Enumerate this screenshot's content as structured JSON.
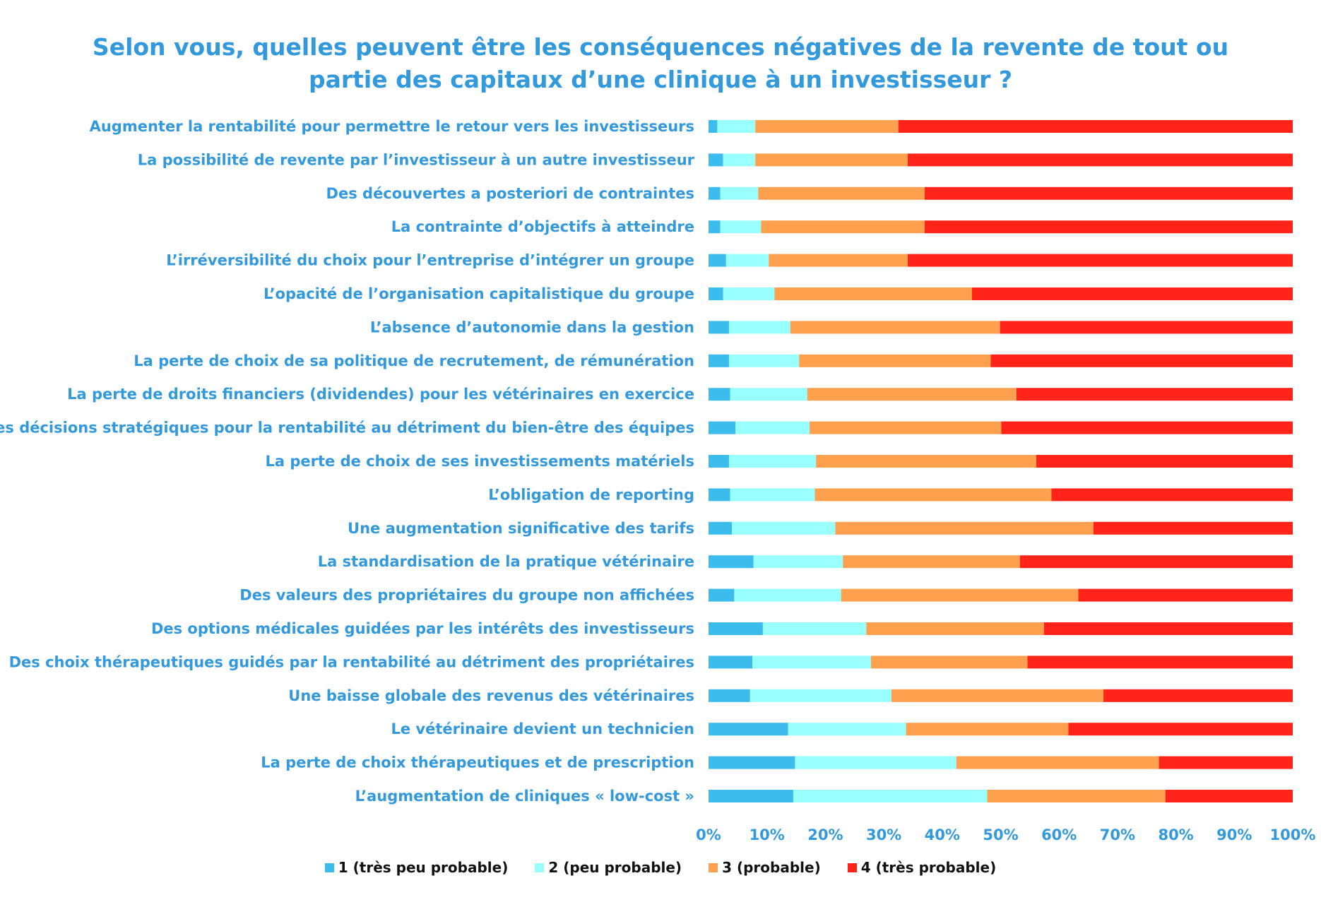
{
  "chart_data": {
    "type": "bar",
    "orientation": "horizontal",
    "stacked": "percent",
    "title_lines": [
      "Selon vous, quelles peuvent être les conséquences négatives de la revente de tout ou",
      "partie des capitaux d’une clinique à un investisseur ?"
    ],
    "categories": [
      "Augmenter la rentabilité pour permettre le retour vers les investisseurs",
      "La possibilité de revente par l’investisseur à un autre investisseur",
      "Des découvertes a posteriori de contraintes",
      "La contrainte d’objectifs à atteindre",
      "L’irréversibilité du choix pour l’entreprise d’intégrer un groupe",
      "L’opacité de l’organisation capitalistique du groupe",
      "L’absence d’autonomie dans la gestion",
      "La perte de choix de sa politique de recrutement, de rémunération",
      "La perte de droits financiers (dividendes) pour les vétérinaires en exercice",
      "Des décisions stratégiques pour la rentabilité au détriment du bien-être des équipes",
      "La perte de choix de ses investissements matériels",
      "L’obligation de reporting",
      "Une augmentation significative des tarifs",
      "La standardisation de la pratique vétérinaire",
      "Des valeurs des propriétaires du groupe non affichées",
      "Des options médicales guidées par les intérêts des investisseurs",
      "Des choix thérapeutiques guidés par la rentabilité au détriment des propriétaires",
      "Une baisse globale des revenus des vétérinaires",
      "Le vétérinaire devient un technicien",
      "La perte de choix thérapeutiques et de prescription",
      "L’augmentation de cliniques « low-cost »"
    ],
    "series": [
      {
        "name": "1 (très peu probable)",
        "color": "#3bbcec",
        "values": [
          1.5,
          2.5,
          2,
          2,
          3,
          2.5,
          3.5,
          3.5,
          3.7,
          4.6,
          3.5,
          3.7,
          4,
          7.7,
          4.4,
          9.3,
          7.5,
          7.1,
          13.6,
          14.8,
          14.5
        ]
      },
      {
        "name": "2 (peu probable)",
        "color": "#99ffff",
        "values": [
          6.5,
          5.5,
          6.5,
          7,
          7.3,
          8.8,
          10.5,
          12,
          13.2,
          12.7,
          14.9,
          14.5,
          17.7,
          15.3,
          18.3,
          17.7,
          20.3,
          24.2,
          20.2,
          27.6,
          33.2
        ]
      },
      {
        "name": "3 (probable)",
        "color": "#ffa04e",
        "values": [
          24.5,
          26.1,
          28.5,
          28,
          23.8,
          33.8,
          35.9,
          32.8,
          35.8,
          32.8,
          37.7,
          40.5,
          44.2,
          30.3,
          40.6,
          30.4,
          26.8,
          36.3,
          27.8,
          34.7,
          30.5
        ]
      },
      {
        "name": "4 (très probable)",
        "color": "#ff2319",
        "values": [
          67.5,
          65.9,
          63,
          63,
          65.9,
          54.9,
          50.1,
          51.7,
          47.3,
          49.9,
          43.9,
          41.3,
          34.1,
          46.7,
          36.7,
          42.6,
          45.4,
          32.4,
          38.4,
          22.9,
          21.8
        ]
      }
    ],
    "x_ticks": [
      "0%",
      "10%",
      "20%",
      "30%",
      "40%",
      "50%",
      "60%",
      "70%",
      "80%",
      "90%",
      "100%"
    ],
    "xlim": [
      0,
      100
    ],
    "grid": false,
    "legend_position": "bottom"
  }
}
